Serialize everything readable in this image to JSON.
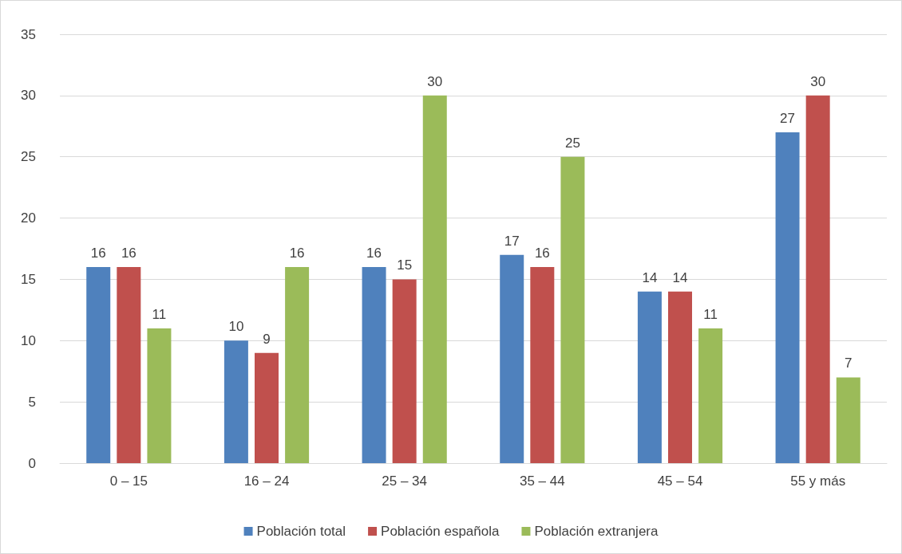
{
  "chart_data": {
    "type": "bar",
    "categories": [
      "0 – 15",
      "16 – 24",
      "25 – 34",
      "35 – 44",
      "45 – 54",
      "55 y más"
    ],
    "series": [
      {
        "name": "Población total",
        "color": "#4f81bd",
        "values": [
          16,
          10,
          16,
          17,
          14,
          27
        ]
      },
      {
        "name": "Población española",
        "color": "#c0504d",
        "values": [
          16,
          9,
          15,
          16,
          14,
          30
        ]
      },
      {
        "name": "Población extranjera",
        "color": "#9bbb59",
        "values": [
          11,
          16,
          30,
          25,
          11,
          7
        ]
      }
    ],
    "ylim": [
      0,
      35
    ],
    "yticks": [
      0,
      5,
      10,
      15,
      20,
      25,
      30,
      35
    ],
    "grid": "y",
    "legend": "bottom",
    "data_labels": true
  }
}
